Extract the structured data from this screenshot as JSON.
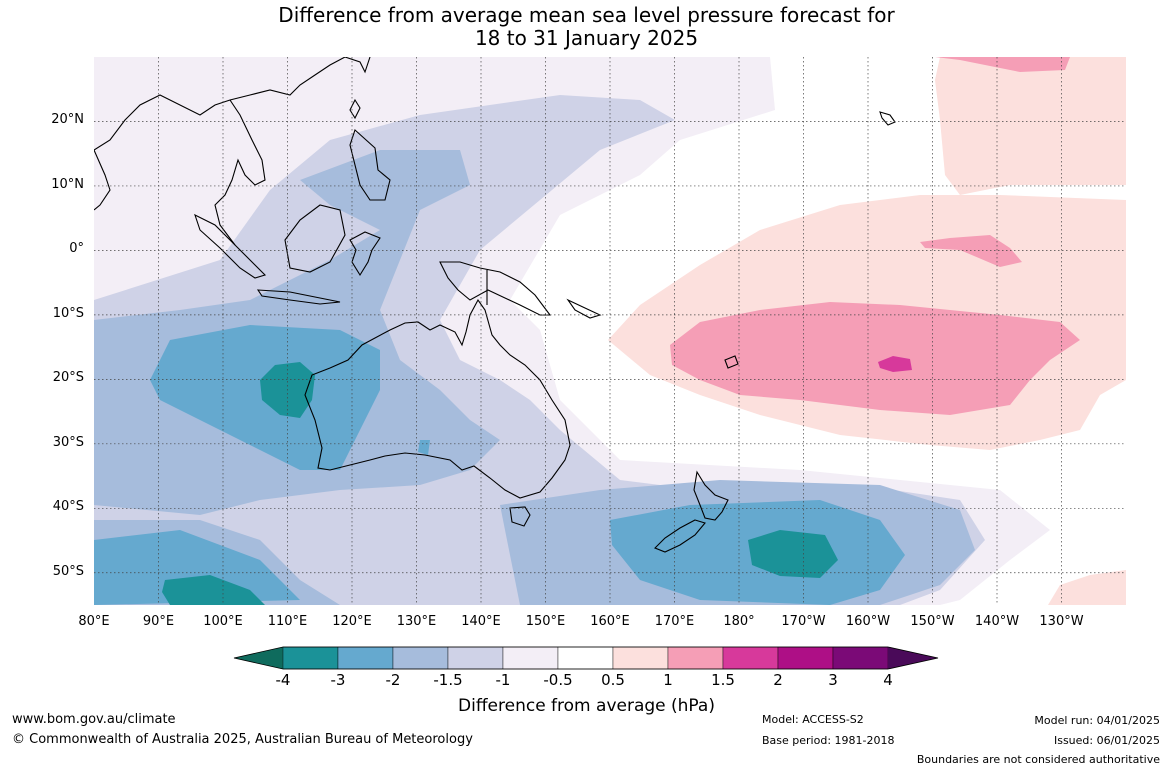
{
  "title": {
    "line1": "Difference from average mean sea level pressure forecast for",
    "line2": "18 to 31 January 2025"
  },
  "map": {
    "lat_labels": [
      "20°N",
      "10°N",
      "0°",
      "10°S",
      "20°S",
      "30°S",
      "40°S",
      "50°S"
    ],
    "lon_labels": [
      "80°E",
      "90°E",
      "100°E",
      "110°E",
      "120°E",
      "130°E",
      "140°E",
      "150°E",
      "160°E",
      "170°E",
      "180°",
      "170°W",
      "160°W",
      "150°W",
      "140°W",
      "130°W"
    ],
    "extent": {
      "lon_min": 80,
      "lon_max": 240,
      "lat_min": -55,
      "lat_max": 30
    }
  },
  "colorbar": {
    "tick_labels": [
      "-4",
      "-3",
      "-2",
      "-1.5",
      "-1",
      "-0.5",
      "0.5",
      "1",
      "1.5",
      "2",
      "3",
      "4"
    ],
    "colors": [
      "#0f6b5d",
      "#1b9298",
      "#65a9cf",
      "#a6bcdc",
      "#cfd2e7",
      "#f3eef6",
      "#ffffff",
      "#fce0dd",
      "#f59eb6",
      "#d7399b",
      "#ae0f86",
      "#7b0a77",
      "#4a0a59"
    ],
    "title": "Difference from average (hPa)"
  },
  "footer": {
    "website": "www.bom.gov.au/climate",
    "copyright": "© Commonwealth of Australia 2025, Australian Bureau of Meteorology",
    "model": "Model: ACCESS-S2",
    "base_period": "Base period: 1981-2018",
    "model_run": "Model run: 04/01/2025",
    "issued": "Issued: 06/01/2025",
    "boundaries": "Boundaries are not considered authoritative"
  }
}
